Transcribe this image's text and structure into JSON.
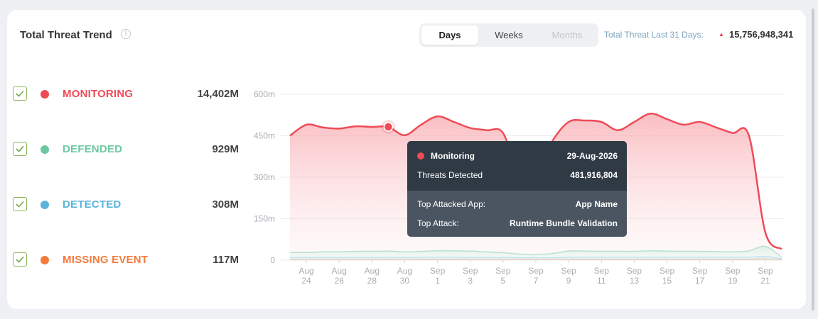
{
  "header": {
    "title": "Total Threat Trend",
    "info_icon": "info-icon",
    "tabs": [
      {
        "label": "Days",
        "state": "active"
      },
      {
        "label": "Weeks",
        "state": "normal"
      },
      {
        "label": "Months",
        "state": "disabled"
      }
    ],
    "total_label": "Total Threat Last 31 Days:",
    "total_arrow": "▲",
    "total_value": "15,756,948,341"
  },
  "legend": [
    {
      "label": "MONITORING",
      "value": "14,402M",
      "color": "#ef4b57",
      "checked": true
    },
    {
      "label": "DEFENDED",
      "value": "929M",
      "color": "#6dc8a0",
      "checked": true
    },
    {
      "label": "DETECTED",
      "value": "308M",
      "color": "#5ab4dc",
      "checked": true
    },
    {
      "label": "MISSING EVENT",
      "value": "117M",
      "color": "#f37a3c",
      "checked": true
    }
  ],
  "tooltip": {
    "series": "Monitoring",
    "date": "29-Aug-2026",
    "threats_label": "Threats Detected",
    "threats_value": "481,916,804",
    "app_label": "Top Attacked App:",
    "app_value": "App Name",
    "attack_label": "Top Attack:",
    "attack_value": "Runtime Bundle Validation"
  },
  "chart_data": {
    "type": "area",
    "x": [
      "Aug 23",
      "Aug 24",
      "Aug 25",
      "Aug 26",
      "Aug 27",
      "Aug 28",
      "Aug 29",
      "Aug 30",
      "Aug 31",
      "Sep 1",
      "Sep 2",
      "Sep 3",
      "Sep 4",
      "Sep 5",
      "Sep 6",
      "Sep 7",
      "Sep 8",
      "Sep 9",
      "Sep 10",
      "Sep 11",
      "Sep 12",
      "Sep 13",
      "Sep 14",
      "Sep 15",
      "Sep 16",
      "Sep 17",
      "Sep 18",
      "Sep 19",
      "Sep 20",
      "Sep 21",
      "Sep 22"
    ],
    "tick_labels": [
      {
        "top": "Aug",
        "bottom": "24"
      },
      {
        "top": "Aug",
        "bottom": "26"
      },
      {
        "top": "Aug",
        "bottom": "28"
      },
      {
        "top": "Aug",
        "bottom": "30"
      },
      {
        "top": "Sep",
        "bottom": "1"
      },
      {
        "top": "Sep",
        "bottom": "3"
      },
      {
        "top": "Sep",
        "bottom": "5"
      },
      {
        "top": "Sep",
        "bottom": "7"
      },
      {
        "top": "Sep",
        "bottom": "9"
      },
      {
        "top": "Sep",
        "bottom": "11"
      },
      {
        "top": "Sep",
        "bottom": "13"
      },
      {
        "top": "Sep",
        "bottom": "15"
      },
      {
        "top": "Sep",
        "bottom": "17"
      },
      {
        "top": "Sep",
        "bottom": "19"
      },
      {
        "top": "Sep",
        "bottom": "21"
      }
    ],
    "yticks": [
      {
        "value": 0,
        "label": "0"
      },
      {
        "value": 150,
        "label": "150m"
      },
      {
        "value": 300,
        "label": "300m"
      },
      {
        "value": 450,
        "label": "450m"
      },
      {
        "value": 600,
        "label": "600m"
      }
    ],
    "ylim": [
      0,
      600
    ],
    "y_unit": "millions",
    "grid": true,
    "highlight_index": 6,
    "series": [
      {
        "name": "Monitoring",
        "color": "#ef4b57",
        "values": [
          450,
          490,
          480,
          476,
          484,
          482,
          482,
          452,
          490,
          520,
          500,
          478,
          470,
          460,
          300,
          310,
          430,
          500,
          505,
          500,
          470,
          500,
          530,
          510,
          490,
          500,
          480,
          460,
          450,
          100,
          40
        ]
      },
      {
        "name": "Defended",
        "color": "#6dc8a0",
        "values": [
          28,
          28,
          30,
          30,
          32,
          32,
          33,
          30,
          32,
          34,
          34,
          33,
          30,
          27,
          22,
          21,
          24,
          33,
          33,
          32,
          32,
          32,
          34,
          33,
          32,
          32,
          31,
          30,
          34,
          50,
          10
        ]
      },
      {
        "name": "Detected",
        "color": "#5ab4dc",
        "values": [
          10,
          10,
          10,
          10,
          10,
          10,
          11,
          10,
          11,
          11,
          11,
          10,
          10,
          10,
          9,
          9,
          9,
          11,
          11,
          11,
          11,
          11,
          11,
          11,
          11,
          11,
          11,
          11,
          11,
          14,
          5
        ]
      },
      {
        "name": "Missing Event",
        "color": "#f37a3c",
        "values": [
          3,
          3,
          3,
          3,
          3,
          3,
          3,
          3,
          3,
          3,
          3,
          3,
          3,
          3,
          3,
          3,
          3,
          3,
          3,
          3,
          3,
          3,
          3,
          3,
          3,
          3,
          3,
          3,
          3,
          5,
          2
        ]
      }
    ]
  }
}
